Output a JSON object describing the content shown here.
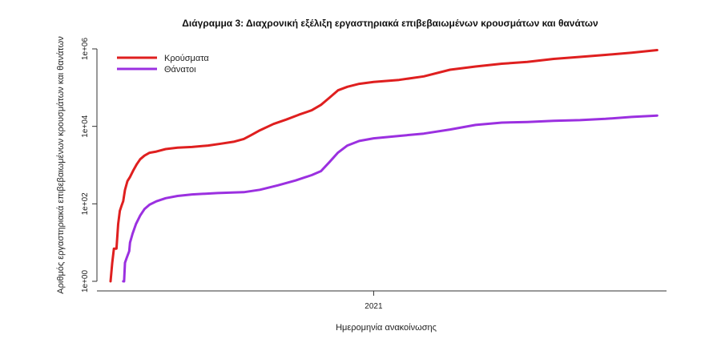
{
  "chart_data": {
    "type": "line",
    "title": "Διάγραμμα 3: Διαχρονική εξέλιξη εργαστηριακά επιβεβαιωμένων κρουσμάτων και θανάτων",
    "xlabel": "Ημερομηνία ανακοίνωσης",
    "ylabel": "Αριθμός εργαστηριακά επιβεβαιωμένων κρουσμάτων και θανάτων",
    "y_scale": "log10",
    "ylim": [
      1,
      1000000
    ],
    "y_ticks": [
      {
        "value": 1,
        "label": "1e+00"
      },
      {
        "value": 100,
        "label": "1e+02"
      },
      {
        "value": 10000,
        "label": "1e+04"
      },
      {
        "value": 1000000,
        "label": "1e+06"
      }
    ],
    "xlim": [
      "2020-02-10",
      "2021-12-12"
    ],
    "x_ticks": [
      {
        "value": "2021-01-01",
        "label": "2021"
      }
    ],
    "legend": "top-left",
    "series": [
      {
        "name": "Κρούσματα",
        "color": "#df1f1f",
        "points": [
          [
            "2020-02-26",
            1
          ],
          [
            "2020-02-28",
            3
          ],
          [
            "2020-03-01",
            7
          ],
          [
            "2020-03-04",
            7
          ],
          [
            "2020-03-06",
            30
          ],
          [
            "2020-03-08",
            66
          ],
          [
            "2020-03-10",
            89
          ],
          [
            "2020-03-12",
            117
          ],
          [
            "2020-03-14",
            228
          ],
          [
            "2020-03-17",
            387
          ],
          [
            "2020-03-20",
            495
          ],
          [
            "2020-03-24",
            743
          ],
          [
            "2020-03-28",
            1061
          ],
          [
            "2020-04-01",
            1415
          ],
          [
            "2020-04-06",
            1755
          ],
          [
            "2020-04-12",
            2081
          ],
          [
            "2020-04-20",
            2235
          ],
          [
            "2020-05-01",
            2591
          ],
          [
            "2020-05-15",
            2810
          ],
          [
            "2020-06-01",
            2937
          ],
          [
            "2020-06-20",
            3203
          ],
          [
            "2020-07-05",
            3562
          ],
          [
            "2020-07-20",
            4000
          ],
          [
            "2020-08-01",
            4737
          ],
          [
            "2020-08-10",
            6000
          ],
          [
            "2020-08-20",
            7900
          ],
          [
            "2020-09-05",
            11500
          ],
          [
            "2020-09-20",
            15000
          ],
          [
            "2020-10-05",
            20000
          ],
          [
            "2020-10-20",
            26000
          ],
          [
            "2020-10-31",
            36000
          ],
          [
            "2020-11-10",
            55000
          ],
          [
            "2020-11-20",
            85000
          ],
          [
            "2020-12-01",
            105000
          ],
          [
            "2020-12-15",
            125000
          ],
          [
            "2021-01-01",
            140000
          ],
          [
            "2021-01-31",
            158000
          ],
          [
            "2021-03-01",
            195000
          ],
          [
            "2021-04-01",
            290000
          ],
          [
            "2021-05-01",
            350000
          ],
          [
            "2021-06-01",
            415000
          ],
          [
            "2021-07-01",
            460000
          ],
          [
            "2021-08-01",
            550000
          ],
          [
            "2021-09-01",
            620000
          ],
          [
            "2021-10-01",
            700000
          ],
          [
            "2021-11-01",
            800000
          ],
          [
            "2021-12-01",
            930000
          ]
        ]
      },
      {
        "name": "Θάνατοι",
        "color": "#9b30e0",
        "points": [
          [
            "2020-03-12",
            1
          ],
          [
            "2020-03-13",
            1
          ],
          [
            "2020-03-14",
            3
          ],
          [
            "2020-03-16",
            4
          ],
          [
            "2020-03-19",
            6
          ],
          [
            "2020-03-20",
            10
          ],
          [
            "2020-03-23",
            17
          ],
          [
            "2020-03-27",
            30
          ],
          [
            "2020-04-01",
            50
          ],
          [
            "2020-04-06",
            73
          ],
          [
            "2020-04-12",
            95
          ],
          [
            "2020-04-20",
            116
          ],
          [
            "2020-05-01",
            140
          ],
          [
            "2020-05-15",
            160
          ],
          [
            "2020-06-01",
            175
          ],
          [
            "2020-07-01",
            190
          ],
          [
            "2020-08-01",
            200
          ],
          [
            "2020-08-20",
            230
          ],
          [
            "2020-09-10",
            300
          ],
          [
            "2020-10-01",
            400
          ],
          [
            "2020-10-20",
            550
          ],
          [
            "2020-10-31",
            700
          ],
          [
            "2020-11-10",
            1200
          ],
          [
            "2020-11-20",
            2100
          ],
          [
            "2020-12-01",
            3200
          ],
          [
            "2020-12-15",
            4200
          ],
          [
            "2021-01-01",
            4900
          ],
          [
            "2021-02-01",
            5700
          ],
          [
            "2021-03-01",
            6500
          ],
          [
            "2021-04-01",
            8300
          ],
          [
            "2021-05-01",
            10900
          ],
          [
            "2021-06-01",
            12500
          ],
          [
            "2021-07-01",
            13000
          ],
          [
            "2021-08-01",
            13900
          ],
          [
            "2021-09-01",
            14500
          ],
          [
            "2021-10-01",
            15600
          ],
          [
            "2021-11-01",
            17500
          ],
          [
            "2021-12-01",
            19000
          ]
        ]
      }
    ]
  }
}
